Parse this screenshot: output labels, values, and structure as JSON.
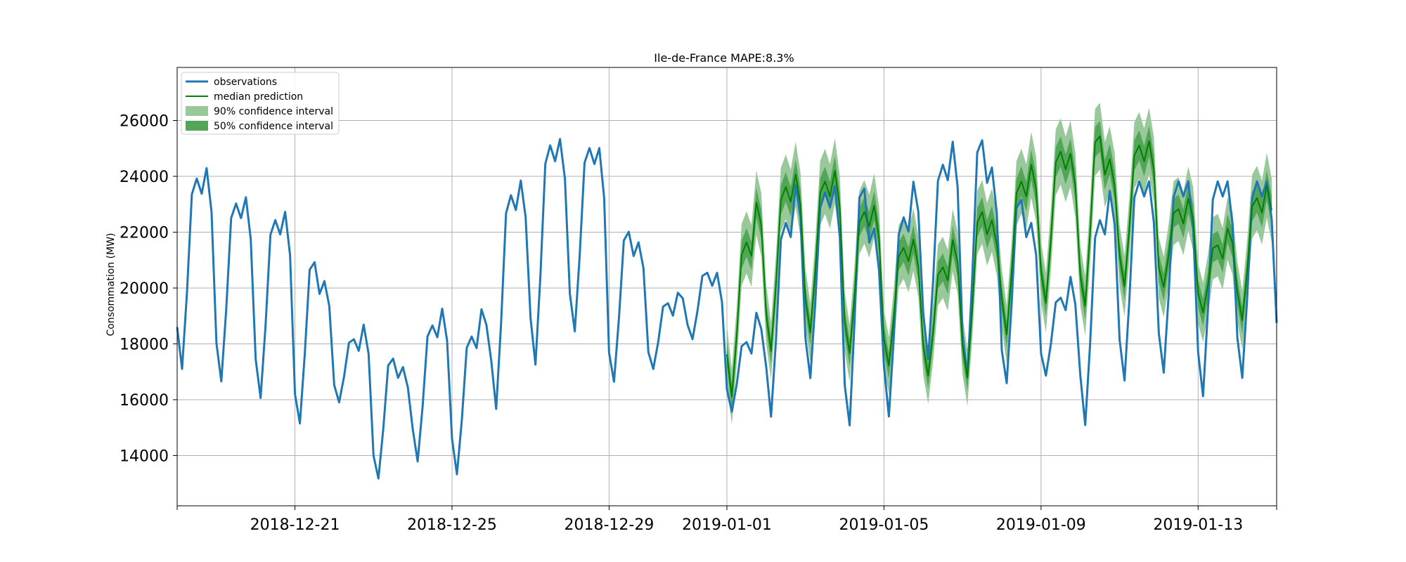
{
  "chart_data": {
    "type": "line",
    "title": "Ile-de-France MAPE:8.3%",
    "xlabel": "",
    "ylabel": "Consommation (MW)",
    "xlim": [
      "2018-12-18",
      "2019-01-15"
    ],
    "ylim": [
      12200,
      27900
    ],
    "grid": true,
    "legend_position": "top-left",
    "x_ticks": [
      "2018-12-21",
      "2018-12-25",
      "2018-12-29",
      "2019-01-01",
      "2019-01-05",
      "2019-01-09",
      "2019-01-13"
    ],
    "y_ticks": [
      14000,
      16000,
      18000,
      20000,
      22000,
      24000,
      26000
    ],
    "legend": [
      {
        "name": "observations",
        "color": "#1f77b4",
        "kind": "line"
      },
      {
        "name": "median prediction",
        "color": "#008000",
        "kind": "line"
      },
      {
        "name": "90% confidence interval",
        "color": "#99c99b",
        "kind": "band"
      },
      {
        "name": "50% confidence interval",
        "color": "#53a657",
        "kind": "band"
      }
    ],
    "observations": {
      "name": "observations",
      "color": "#1f77b4",
      "x": [
        "2018-12-18",
        "2019-01-15"
      ],
      "x_step_hours": 3,
      "daily_peaks": [
        24100,
        24600,
        23200,
        23500,
        22600,
        23000,
        21300,
        20400,
        18300,
        19000,
        17700,
        17300,
        18800,
        19600,
        18400,
        19700,
        23500,
        24200,
        25300,
        25600,
        25200,
        25200,
        22300,
        21800,
        19600,
        20100,
        20700,
        20700,
        18200,
        19600,
        22500,
        24300,
        23600,
        23900,
        24200,
        22300,
        22700,
        24400,
        24600,
        25700,
        25800,
        24500,
        23600,
        22500,
        19800,
        20800,
        22600,
        24000
      ],
      "daily_troughs": [
        16600,
        16200,
        15600,
        14800,
        15700,
        12900,
        13400,
        12900,
        15100,
        16700,
        18000,
        16300,
        16900,
        18000,
        15300,
        14800,
        16300,
        14600,
        14800,
        16900,
        16300,
        16200,
        16600,
        14500,
        16200,
        16500,
        15600,
        16300,
        17000,
        18000,
        16200,
        17400,
        15800,
        14700,
        14900,
        16800,
        17500
      ]
    },
    "median_prediction": {
      "name": "median prediction",
      "color": "#008000",
      "x": [
        "2019-01-01",
        "2019-01-15"
      ],
      "x_step_hours": 3,
      "daily_peaks": [
        21800,
        23700,
        23800,
        24400,
        24000,
        24500,
        22900,
        23200,
        21600,
        22000,
        20900,
        22200,
        23000,
        22600,
        24000,
        24800,
        25100,
        25000,
        25900,
        24800,
        25300,
        25500,
        23000,
        23500,
        21700,
        22500,
        23400,
        24000
      ],
      "daily_troughs": [
        15600,
        17300,
        18000,
        17300,
        16900,
        16500,
        16400,
        17900,
        19100,
        19000,
        19700,
        19800,
        18900,
        18500
      ]
    },
    "confidence_90": {
      "name": "90% confidence interval",
      "color": "#99c99b",
      "half_width_peak": 1200,
      "half_width_trough": 1000
    },
    "confidence_50": {
      "name": "50% confidence interval",
      "color": "#53a657",
      "half_width_peak": 550,
      "half_width_trough": 450
    }
  }
}
